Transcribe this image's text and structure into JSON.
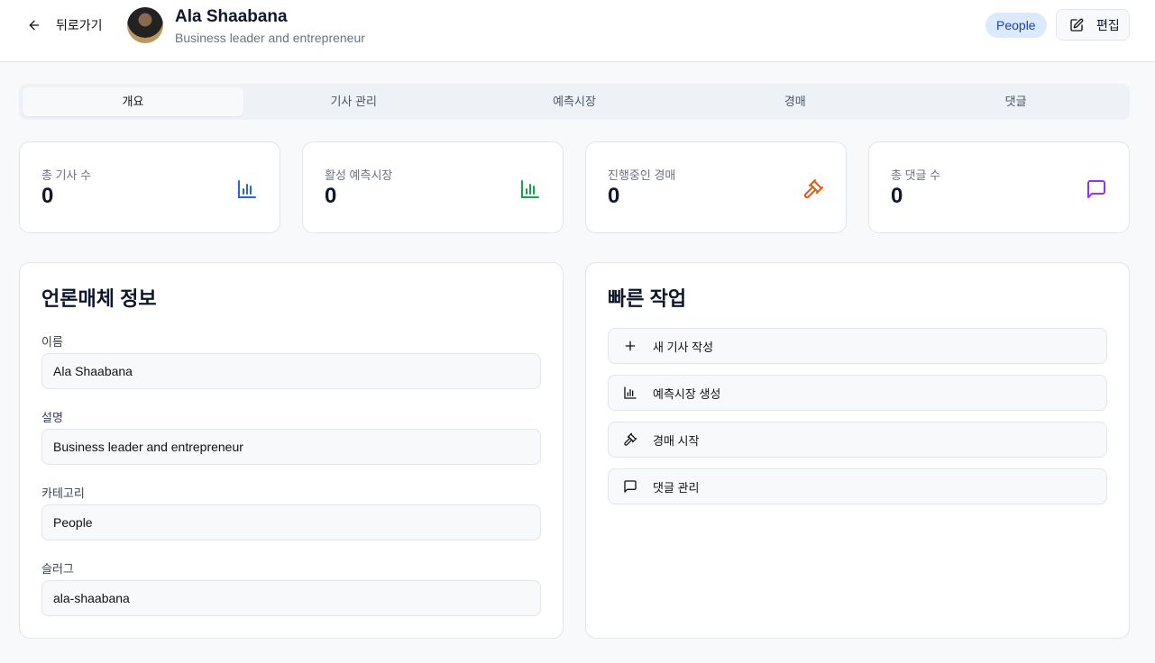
{
  "header": {
    "back_label": "뒤로가기",
    "title": "Ala Shaabana",
    "subtitle": "Business leader and entrepreneur",
    "badge": "People",
    "edit_label": "편집"
  },
  "tabs": [
    {
      "label": "개요",
      "active": true
    },
    {
      "label": "기사 관리"
    },
    {
      "label": "예측시장"
    },
    {
      "label": "경매"
    },
    {
      "label": "댓글"
    }
  ],
  "stats": [
    {
      "label": "총 기사 수",
      "value": "0",
      "icon": "bar-chart-icon",
      "color": "#2563eb"
    },
    {
      "label": "활성 예측시장",
      "value": "0",
      "icon": "bar-chart-icon",
      "color": "#16a34a"
    },
    {
      "label": "진행중인 경매",
      "value": "0",
      "icon": "gavel-icon",
      "color": "#ea580c"
    },
    {
      "label": "총 댓글 수",
      "value": "0",
      "icon": "message-square-icon",
      "color": "#9333ea"
    }
  ],
  "info": {
    "title": "언론매체 정보",
    "fields": [
      {
        "label": "이름",
        "value": "Ala Shaabana"
      },
      {
        "label": "설명",
        "value": "Business leader and entrepreneur"
      },
      {
        "label": "카테고리",
        "value": "People"
      },
      {
        "label": "슬러그",
        "value": "ala-shaabana"
      }
    ]
  },
  "quick": {
    "title": "빠른 작업",
    "actions": [
      {
        "label": "새 기사 작성",
        "icon": "plus-icon"
      },
      {
        "label": "예측시장 생성",
        "icon": "bar-chart-icon"
      },
      {
        "label": "경매 시작",
        "icon": "gavel-icon"
      },
      {
        "label": "댓글 관리",
        "icon": "message-square-icon"
      }
    ]
  }
}
